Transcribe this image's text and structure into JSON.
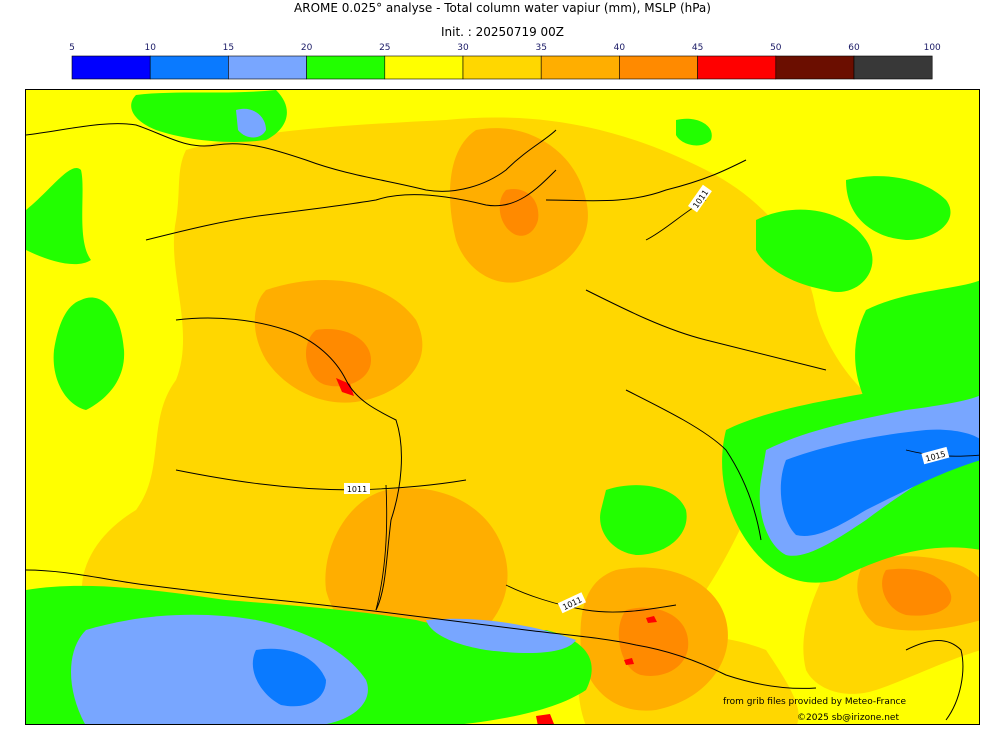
{
  "title": "AROME 0.025° analyse - Total column water vapiur (mm), MSLP (hPa)",
  "init": "Init. : 20250719 00Z",
  "legend": {
    "ticks": [
      "5",
      "10",
      "15",
      "20",
      "25",
      "30",
      "35",
      "40",
      "45",
      "50",
      "60",
      "100"
    ],
    "colors": [
      "#0000ff",
      "#0a7aff",
      "#78a6ff",
      "#22ff00",
      "#ffff00",
      "#ffd700",
      "#ffae00",
      "#ff8a00",
      "#ff0000",
      "#6b0e00",
      "#383838"
    ]
  },
  "isobars": [
    {
      "label": "1011"
    },
    {
      "label": "1011"
    },
    {
      "label": "1011"
    },
    {
      "label": "1015"
    }
  ],
  "credits": {
    "provider": "from grib files provided by Meteo-France",
    "copyright": "©2025 sb@irizone.net"
  }
}
